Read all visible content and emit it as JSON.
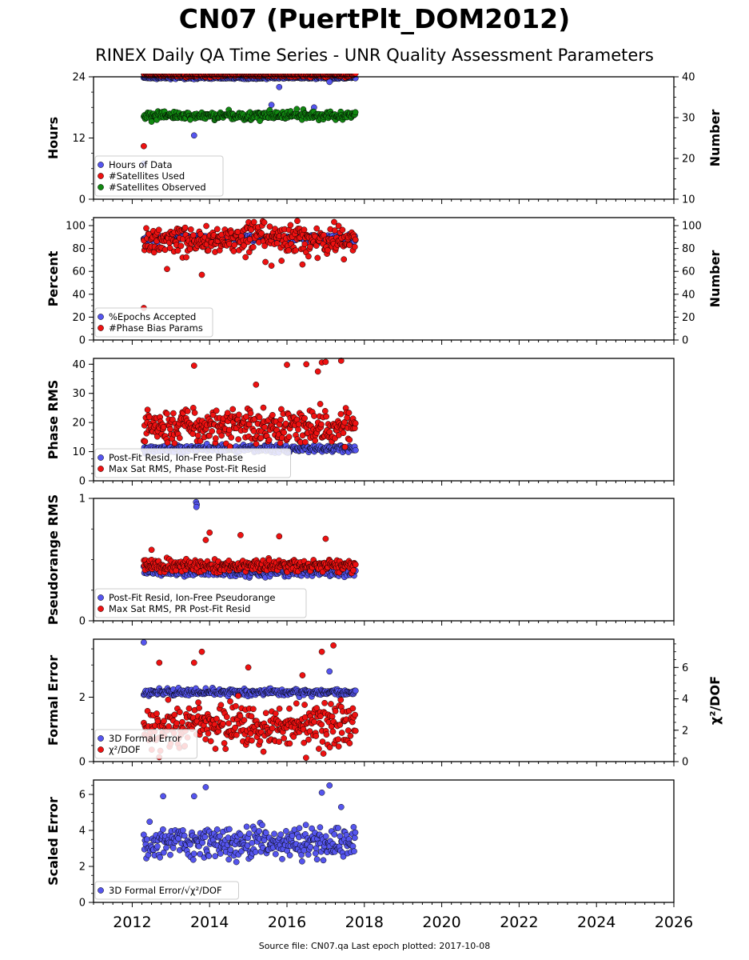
{
  "title": "CN07 (PuertPlt_DOM2012)",
  "subtitle": "RINEX Daily QA Time Series - UNR Quality Assessment Parameters",
  "footer": "Source file: CN07.qa Last epoch plotted: 2017-10-08",
  "colors": {
    "blue": "#5555ee",
    "red": "#ee1111",
    "green": "#118811"
  },
  "chart_data": [
    {
      "type": "scatter",
      "ylabel": "Hours",
      "ylim": [
        0,
        24
      ],
      "yticks": [
        0,
        12,
        24
      ],
      "y2label": "Number",
      "y2lim": [
        10,
        40
      ],
      "y2ticks": [
        10,
        20,
        30,
        40
      ],
      "legend_loc": "lower-left",
      "series": [
        {
          "name": "Hours of Data",
          "color": "blue",
          "axis": "left",
          "base": 23.8,
          "spread": 0.2,
          "outliers": [
            [
              2012.3,
              7.0
            ],
            [
              2013.6,
              12.5
            ],
            [
              2014.7,
              24.0
            ],
            [
              2015.6,
              18.5
            ],
            [
              2015.8,
              22.0
            ],
            [
              2016.7,
              18.0
            ],
            [
              2017.1,
              23.0
            ]
          ]
        },
        {
          "name": "#Satellites Used",
          "color": "red",
          "axis": "right",
          "base": 40.5,
          "spread": 0.5,
          "outliers": [
            [
              2012.3,
              23.0
            ]
          ]
        },
        {
          "name": "#Satellites Observed",
          "color": "green",
          "axis": "right",
          "base": 30.5,
          "spread": 1.0,
          "outliers": [
            [
              2012.5,
              29.0
            ],
            [
              2013.5,
              29.5
            ],
            [
              2015.3,
              29.2
            ]
          ]
        }
      ]
    },
    {
      "type": "scatter",
      "ylabel": "Percent",
      "ylim": [
        0,
        107
      ],
      "yticks": [
        0,
        20,
        40,
        60,
        80,
        100
      ],
      "y2label": "Number",
      "y2lim": [
        0,
        107
      ],
      "y2ticks": [
        0,
        20,
        40,
        60,
        80,
        100
      ],
      "legend_loc": "lower-left",
      "series": [
        {
          "name": "%Epochs Accepted",
          "color": "blue",
          "axis": "left",
          "base": 89,
          "spread": 3,
          "outliers": [
            [
              2012.8,
              80.0
            ]
          ]
        },
        {
          "name": "#Phase Bias Params",
          "color": "red",
          "axis": "right",
          "base": 88,
          "spread": 14,
          "outliers": [
            [
              2012.3,
              28.0
            ],
            [
              2013.8,
              57.0
            ],
            [
              2015.6,
              65.0
            ],
            [
              2016.4,
              66.0
            ],
            [
              2012.9,
              62.0
            ]
          ]
        }
      ]
    },
    {
      "type": "scatter",
      "ylabel": "Phase RMS",
      "ylim": [
        0,
        42
      ],
      "yticks": [
        0,
        10,
        20,
        30,
        40
      ],
      "legend_loc": "lower-left",
      "series": [
        {
          "name": "Post-Fit Resid, Ion-Free Phase",
          "color": "blue",
          "axis": "left",
          "base": 11,
          "spread": 1.2,
          "outliers": []
        },
        {
          "name": "Max Sat RMS, Phase Post-Fit Resid",
          "color": "red",
          "axis": "left",
          "base": 19,
          "spread": 6,
          "outliers": [
            [
              2013.6,
              39.5
            ],
            [
              2016.0,
              39.8
            ],
            [
              2016.5,
              40.0
            ],
            [
              2016.9,
              40.6
            ],
            [
              2017.0,
              40.8
            ],
            [
              2017.4,
              41.2
            ],
            [
              2016.8,
              37.5
            ],
            [
              2015.2,
              33.0
            ]
          ]
        }
      ]
    },
    {
      "type": "scatter",
      "ylabel": "Pseudorange RMS",
      "ylim": [
        0,
        1
      ],
      "yticks": [
        0,
        1
      ],
      "legend_loc": "lower-left",
      "series": [
        {
          "name": "Post-Fit Resid, Ion-Free Pseudorange",
          "color": "blue",
          "axis": "left",
          "base": 0.4,
          "spread": 0.04,
          "outliers": [
            [
              2013.65,
              0.97
            ],
            [
              2013.67,
              0.95
            ],
            [
              2013.66,
              0.93
            ]
          ]
        },
        {
          "name": "Max Sat RMS, PR Post-Fit Resid",
          "color": "red",
          "axis": "left",
          "base": 0.45,
          "spread": 0.05,
          "outliers": [
            [
              2014.0,
              0.72
            ],
            [
              2013.9,
              0.66
            ],
            [
              2014.8,
              0.7
            ],
            [
              2015.8,
              0.69
            ],
            [
              2017.0,
              0.67
            ],
            [
              2012.5,
              0.58
            ]
          ]
        }
      ]
    },
    {
      "type": "scatter",
      "ylabel": "Formal Error",
      "ylim": [
        0,
        3.8
      ],
      "yticks": [
        0,
        2
      ],
      "y2label": "χ²/DOF",
      "y2lim": [
        0,
        7.8
      ],
      "y2ticks": [
        0,
        2,
        4,
        6
      ],
      "legend_loc": "lower-left",
      "series": [
        {
          "name": "3D Formal Error",
          "color": "blue",
          "axis": "left",
          "base": 2.15,
          "spread": 0.1,
          "outliers": [
            [
              2012.3,
              3.7
            ],
            [
              2017.1,
              2.8
            ]
          ]
        },
        {
          "name": "χ²/DOF",
          "color": "red",
          "axis": "right",
          "base": 2.3,
          "spread": 1.4,
          "outliers": [
            [
              2012.7,
              6.3
            ],
            [
              2013.6,
              6.3
            ],
            [
              2013.8,
              7.0
            ],
            [
              2016.9,
              7.0
            ],
            [
              2017.2,
              7.4
            ],
            [
              2015.0,
              6.0
            ],
            [
              2016.4,
              5.5
            ]
          ]
        }
      ]
    },
    {
      "type": "scatter",
      "ylabel": "Scaled Error",
      "ylim": [
        0,
        6.8
      ],
      "yticks": [
        0,
        2,
        4,
        6
      ],
      "legend_loc": "lower-left",
      "series": [
        {
          "name": "3D Formal Error/√χ²/DOF",
          "color": "blue",
          "axis": "left",
          "base": 3.3,
          "spread": 0.9,
          "outliers": [
            [
              2013.9,
              6.4
            ],
            [
              2017.1,
              6.5
            ],
            [
              2012.8,
              5.9
            ],
            [
              2016.9,
              6.1
            ],
            [
              2013.6,
              5.9
            ],
            [
              2017.4,
              5.3
            ]
          ]
        }
      ]
    }
  ],
  "xaxis": {
    "xlim": [
      2011,
      2026
    ],
    "ticks": [
      2012,
      2014,
      2016,
      2018,
      2020,
      2022,
      2024,
      2026
    ],
    "data_range": [
      2012.3,
      2017.77
    ]
  }
}
